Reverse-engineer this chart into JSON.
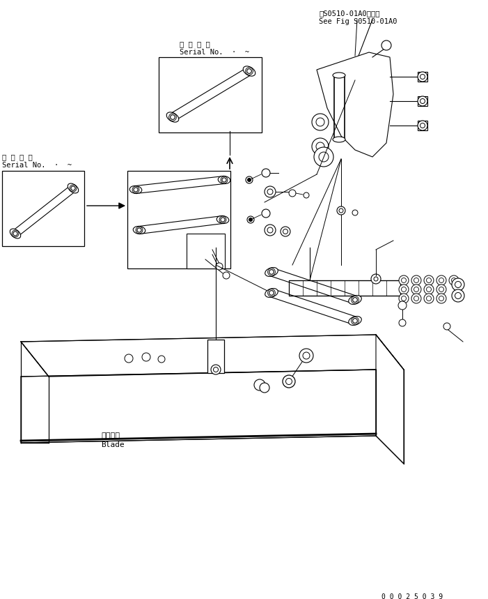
{
  "bg_color": "#ffffff",
  "line_color": "#000000",
  "fig_width": 7.01,
  "fig_height": 8.59,
  "dpi": 100,
  "top_right_line1": "笮S0510-01A0図参照",
  "top_right_line2": "See Fig S0510-01A0",
  "bottom_number": "0 0 0 2 5 0 3 9",
  "blade_jp": "ブレード",
  "blade_en": "Blade",
  "serial_top_jp": "適 用 号 機",
  "serial_top_en": "Serial No.  ·  ~",
  "serial_left_jp": "適 用 号 機",
  "serial_left_en": "Serial No.  ·  ~"
}
